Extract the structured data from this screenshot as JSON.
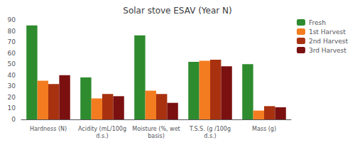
{
  "chart_data": {
    "type": "bar",
    "title": "Solar stove ESAV (Year N)",
    "categories": [
      "Hardness (N)",
      "Acidity (mL/100g\nd.s.)",
      "Moisture (%, wet\nbasis)",
      "T.S.S. (g /100g\nd.s.)",
      "Mass (g)"
    ],
    "series": [
      {
        "name": "Fresh",
        "color": "#2e8b2e",
        "values": [
          85,
          38,
          76,
          52,
          50
        ]
      },
      {
        "name": "1st Harvest",
        "color": "#f47c20",
        "values": [
          35,
          19,
          26,
          53,
          8
        ]
      },
      {
        "name": "2nd Harvest",
        "color": "#a83210",
        "values": [
          32,
          23,
          23,
          54,
          12
        ]
      },
      {
        "name": "3rd Harvest",
        "color": "#7b1010",
        "values": [
          40,
          21,
          15,
          48,
          11
        ]
      }
    ],
    "ylim": [
      0,
      90
    ],
    "yticks": [
      0,
      10,
      20,
      30,
      40,
      50,
      60,
      70,
      80,
      90
    ],
    "grid": false,
    "legend": "upper right"
  }
}
